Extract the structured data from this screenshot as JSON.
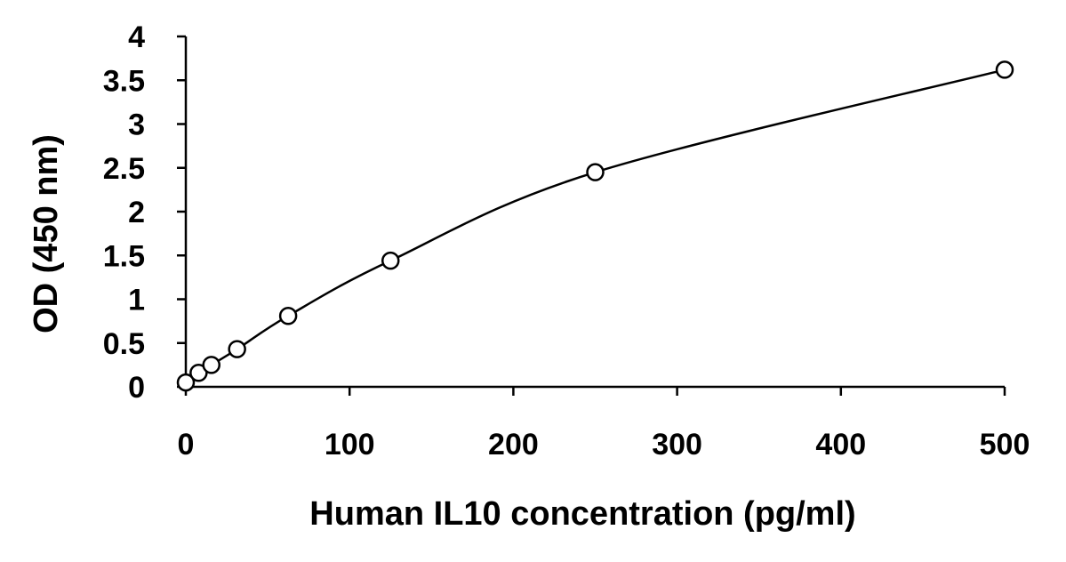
{
  "chart_data": {
    "type": "scatter",
    "title": "",
    "xlabel": "Human IL10 concentration (pg/ml)",
    "ylabel": "OD (450 nm)",
    "xlim": [
      0,
      500
    ],
    "ylim": [
      0,
      4
    ],
    "x_ticks": [
      0,
      100,
      200,
      300,
      400,
      500
    ],
    "y_ticks": [
      0,
      0.5,
      1,
      1.5,
      2,
      2.5,
      3,
      3.5,
      4
    ],
    "x_tick_labels": [
      "0",
      "100",
      "200",
      "300",
      "400",
      "500"
    ],
    "y_tick_labels": [
      "0",
      "0.5",
      "1",
      "1.5",
      "2",
      "2.5",
      "3",
      "3.5",
      "4"
    ],
    "grid": false,
    "legend": "none",
    "series": [
      {
        "marker": "open-circle",
        "fit_line": "smooth curve",
        "points": [
          {
            "x": 0,
            "y": 0.05
          },
          {
            "x": 7.8,
            "y": 0.16
          },
          {
            "x": 15.6,
            "y": 0.25
          },
          {
            "x": 31.3,
            "y": 0.43
          },
          {
            "x": 62.5,
            "y": 0.81
          },
          {
            "x": 125,
            "y": 1.44
          },
          {
            "x": 250,
            "y": 2.45
          },
          {
            "x": 500,
            "y": 3.62
          }
        ]
      }
    ]
  }
}
